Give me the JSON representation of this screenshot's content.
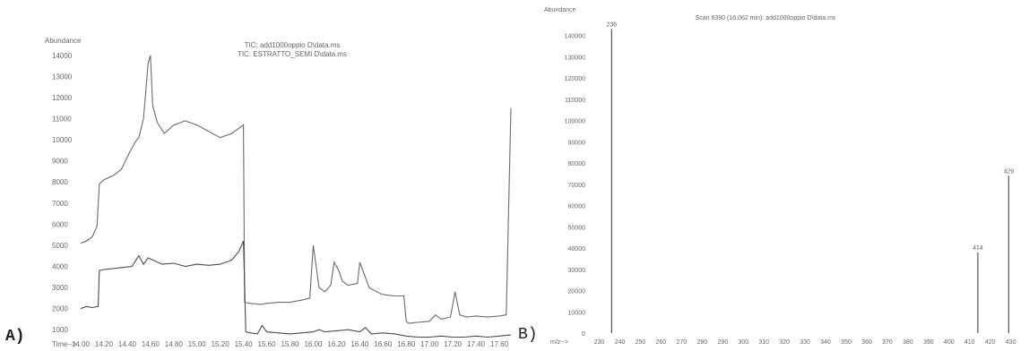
{
  "panels": {
    "a_label": "A)",
    "b_label": "B)"
  },
  "chart_data": [
    {
      "type": "line",
      "panel": "A",
      "title_lines": [
        "TIC: add1000oppio D\\data.ms",
        "TIC: ESTRATTO_SEMI D\\data.ms"
      ],
      "ylabel": "Abundance",
      "xlabel": "Time-->",
      "xlim": [
        14.0,
        17.7
      ],
      "ylim": [
        500,
        14500
      ],
      "x_ticks": [
        "14.00",
        "14.20",
        "14.40",
        "14.60",
        "14.80",
        "15.00",
        "15.20",
        "15.40",
        "15.60",
        "15.80",
        "16.00",
        "16.20",
        "16.40",
        "16.60",
        "16.80",
        "17.00",
        "17.20",
        "17.40",
        "17.60"
      ],
      "y_ticks": [
        "1000",
        "2000",
        "3000",
        "4000",
        "5000",
        "6000",
        "7000",
        "8000",
        "9000",
        "10000",
        "11000",
        "12000",
        "13000",
        "14000"
      ],
      "series": [
        {
          "color": "#6a6a6a",
          "x": [
            14.0,
            14.05,
            14.1,
            14.14,
            14.16,
            14.2,
            14.28,
            14.35,
            14.42,
            14.47,
            14.5,
            14.54,
            14.58,
            14.6,
            14.62,
            14.66,
            14.72,
            14.8,
            14.9,
            15.0,
            15.1,
            15.2,
            15.3,
            15.4,
            15.41,
            15.45,
            15.55,
            15.6,
            15.7,
            15.8,
            15.9,
            15.97,
            16.0,
            16.02,
            16.05,
            16.1,
            16.15,
            16.18,
            16.22,
            16.25,
            16.3,
            16.38,
            16.4,
            16.48,
            16.58,
            16.62,
            16.7,
            16.78,
            16.8,
            16.82,
            16.9,
            17.0,
            17.05,
            17.1,
            17.18,
            17.22,
            17.26,
            17.32,
            17.4,
            17.5,
            17.6,
            17.66,
            17.7
          ],
          "y": [
            5100,
            5200,
            5400,
            5900,
            7900,
            8100,
            8300,
            8600,
            9400,
            9900,
            10100,
            11000,
            13600,
            14000,
            11600,
            10800,
            10300,
            10700,
            10900,
            10700,
            10400,
            10100,
            10300,
            10700,
            2300,
            2250,
            2200,
            2250,
            2300,
            2300,
            2400,
            2500,
            5000,
            4200,
            3000,
            2800,
            3100,
            4200,
            3800,
            3300,
            3100,
            3200,
            4200,
            3000,
            2700,
            2650,
            2600,
            2600,
            1400,
            1300,
            1350,
            1400,
            1700,
            1500,
            1600,
            2800,
            1700,
            1600,
            1650,
            1600,
            1650,
            1700,
            11500
          ]
        },
        {
          "color": "#4a4a4a",
          "x": [
            14.0,
            14.05,
            14.1,
            14.15,
            14.16,
            14.2,
            14.28,
            14.36,
            14.44,
            14.5,
            14.54,
            14.58,
            14.62,
            14.66,
            14.7,
            14.8,
            14.9,
            15.0,
            15.1,
            15.2,
            15.3,
            15.36,
            15.4,
            15.42,
            15.46,
            15.52,
            15.56,
            15.6,
            15.7,
            15.8,
            15.9,
            16.0,
            16.05,
            16.1,
            16.2,
            16.3,
            16.4,
            16.45,
            16.5,
            16.6,
            16.7,
            16.8,
            16.9,
            17.0,
            17.1,
            17.2,
            17.3,
            17.4,
            17.5,
            17.6,
            17.7
          ],
          "y": [
            2000,
            2100,
            2050,
            2100,
            3800,
            3850,
            3900,
            3950,
            4000,
            4500,
            4100,
            4400,
            4300,
            4200,
            4100,
            4150,
            4000,
            4100,
            4050,
            4100,
            4300,
            4700,
            5200,
            900,
            850,
            800,
            1200,
            900,
            850,
            800,
            850,
            900,
            1000,
            900,
            950,
            1000,
            900,
            1100,
            800,
            850,
            800,
            700,
            650,
            650,
            700,
            650,
            650,
            700,
            650,
            700,
            750
          ]
        }
      ]
    },
    {
      "type": "bar",
      "panel": "B",
      "title": "Scan 6390 (16.062 min): add1000oppio D\\data.ms",
      "ylabel": "Abundance",
      "xlabel": "m/z-->",
      "xlim": [
        228,
        438
      ],
      "ylim": [
        0,
        144000
      ],
      "x_ticks": [
        "230",
        "240",
        "250",
        "260",
        "270",
        "280",
        "290",
        "300",
        "310",
        "320",
        "330",
        "340",
        "350",
        "360",
        "370",
        "380",
        "390",
        "400",
        "410",
        "420",
        "430"
      ],
      "y_ticks": [
        "0",
        "10000",
        "20000",
        "30000",
        "40000",
        "50000",
        "60000",
        "70000",
        "80000",
        "90000",
        "100000",
        "110000",
        "120000",
        "130000",
        "140000"
      ],
      "x": [
        236,
        414,
        429
      ],
      "values": [
        143000,
        38000,
        74000
      ],
      "bar_labels": [
        "236",
        "414",
        "429"
      ]
    }
  ]
}
